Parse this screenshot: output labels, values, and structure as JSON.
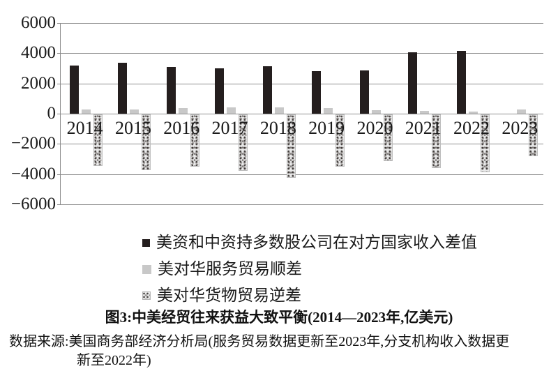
{
  "chart_data": {
    "type": "bar",
    "title": "图3:中美经贸往来获益大致平衡(2014—2023年,亿美元)",
    "xlabel": "",
    "ylabel": "",
    "unit": "亿美元",
    "categories": [
      "2014",
      "2015",
      "2016",
      "2017",
      "2018",
      "2019",
      "2020",
      "2021",
      "2022",
      "2023"
    ],
    "series": [
      {
        "key": "income-diff",
        "name": "美资和中资持多数股公司在对方国家收入差值",
        "swatch": "black",
        "color": "#241e1e",
        "values": [
          3200,
          3350,
          3100,
          3000,
          3150,
          2830,
          2880,
          4050,
          4150,
          null
        ]
      },
      {
        "key": "services-surplus",
        "name": "美对华服务贸易顺差",
        "swatch": "gray",
        "color": "#c8c8c8",
        "values": [
          280,
          300,
          370,
          400,
          400,
          360,
          250,
          200,
          150,
          300
        ]
      },
      {
        "key": "goods-deficit",
        "name": "美对华货物贸易逆差",
        "swatch": "texture",
        "color": "#e9e9e9-speckled",
        "values": [
          -3430,
          -3670,
          -3470,
          -3750,
          -4180,
          -3450,
          -3100,
          -3550,
          -3830,
          -2790
        ]
      }
    ],
    "ylim": [
      -6000,
      6000
    ],
    "yticks": [
      {
        "value": 6000,
        "label": "6000"
      },
      {
        "value": 4000,
        "label": "4000"
      },
      {
        "value": 2000,
        "label": "2000"
      },
      {
        "value": 0,
        "label": "0"
      },
      {
        "value": -2000,
        "label": "−2000"
      },
      {
        "value": -4000,
        "label": "−4000"
      },
      {
        "value": -6000,
        "label": "−6000"
      }
    ],
    "grid": true,
    "legend_position": "bottom-left"
  },
  "caption": "图3:中美经贸往来获益大致平衡(2014—2023年,亿美元)",
  "source": {
    "line1": "数据来源:美国商务部经济分析局(服务贸易数据更新至2023年,分支机构收入数据更",
    "line2": "新至2022年)"
  }
}
